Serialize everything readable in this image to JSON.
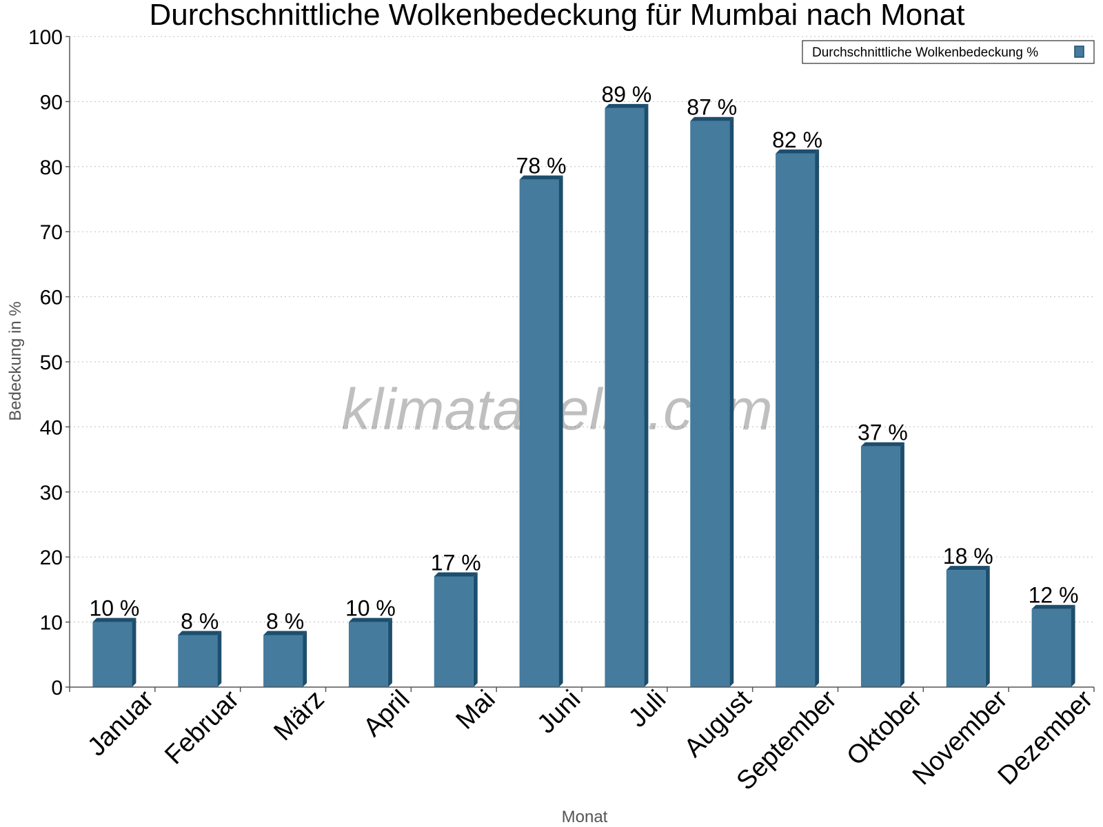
{
  "chart_data": {
    "type": "bar",
    "title": "Durchschnittliche Wolkenbedeckung für Mumbai nach Monat",
    "xlabel": "Monat",
    "ylabel": "Bedeckung in %",
    "ylim": [
      0,
      100
    ],
    "yticks": [
      0,
      10,
      20,
      30,
      40,
      50,
      60,
      70,
      80,
      90,
      100
    ],
    "categories": [
      "Januar",
      "Februar",
      "März",
      "April",
      "Mai",
      "Juni",
      "Juli",
      "August",
      "September",
      "Oktober",
      "November",
      "Dezember"
    ],
    "series": [
      {
        "name": "Durchschnittliche Wolkenbedeckung %",
        "values": [
          10,
          8,
          8,
          10,
          17,
          78,
          89,
          87,
          82,
          37,
          18,
          12
        ],
        "data_labels": [
          "10 %",
          "8 %",
          "8 %",
          "10 %",
          "17 %",
          "78 %",
          "89 %",
          "87 %",
          "82 %",
          "37 %",
          "18 %",
          "12 %"
        ],
        "color": "#457b9d",
        "shade_color": "#1d4e6e"
      }
    ],
    "grid": true,
    "legend_position": "top-right",
    "watermark": "klimatabelle.com"
  }
}
